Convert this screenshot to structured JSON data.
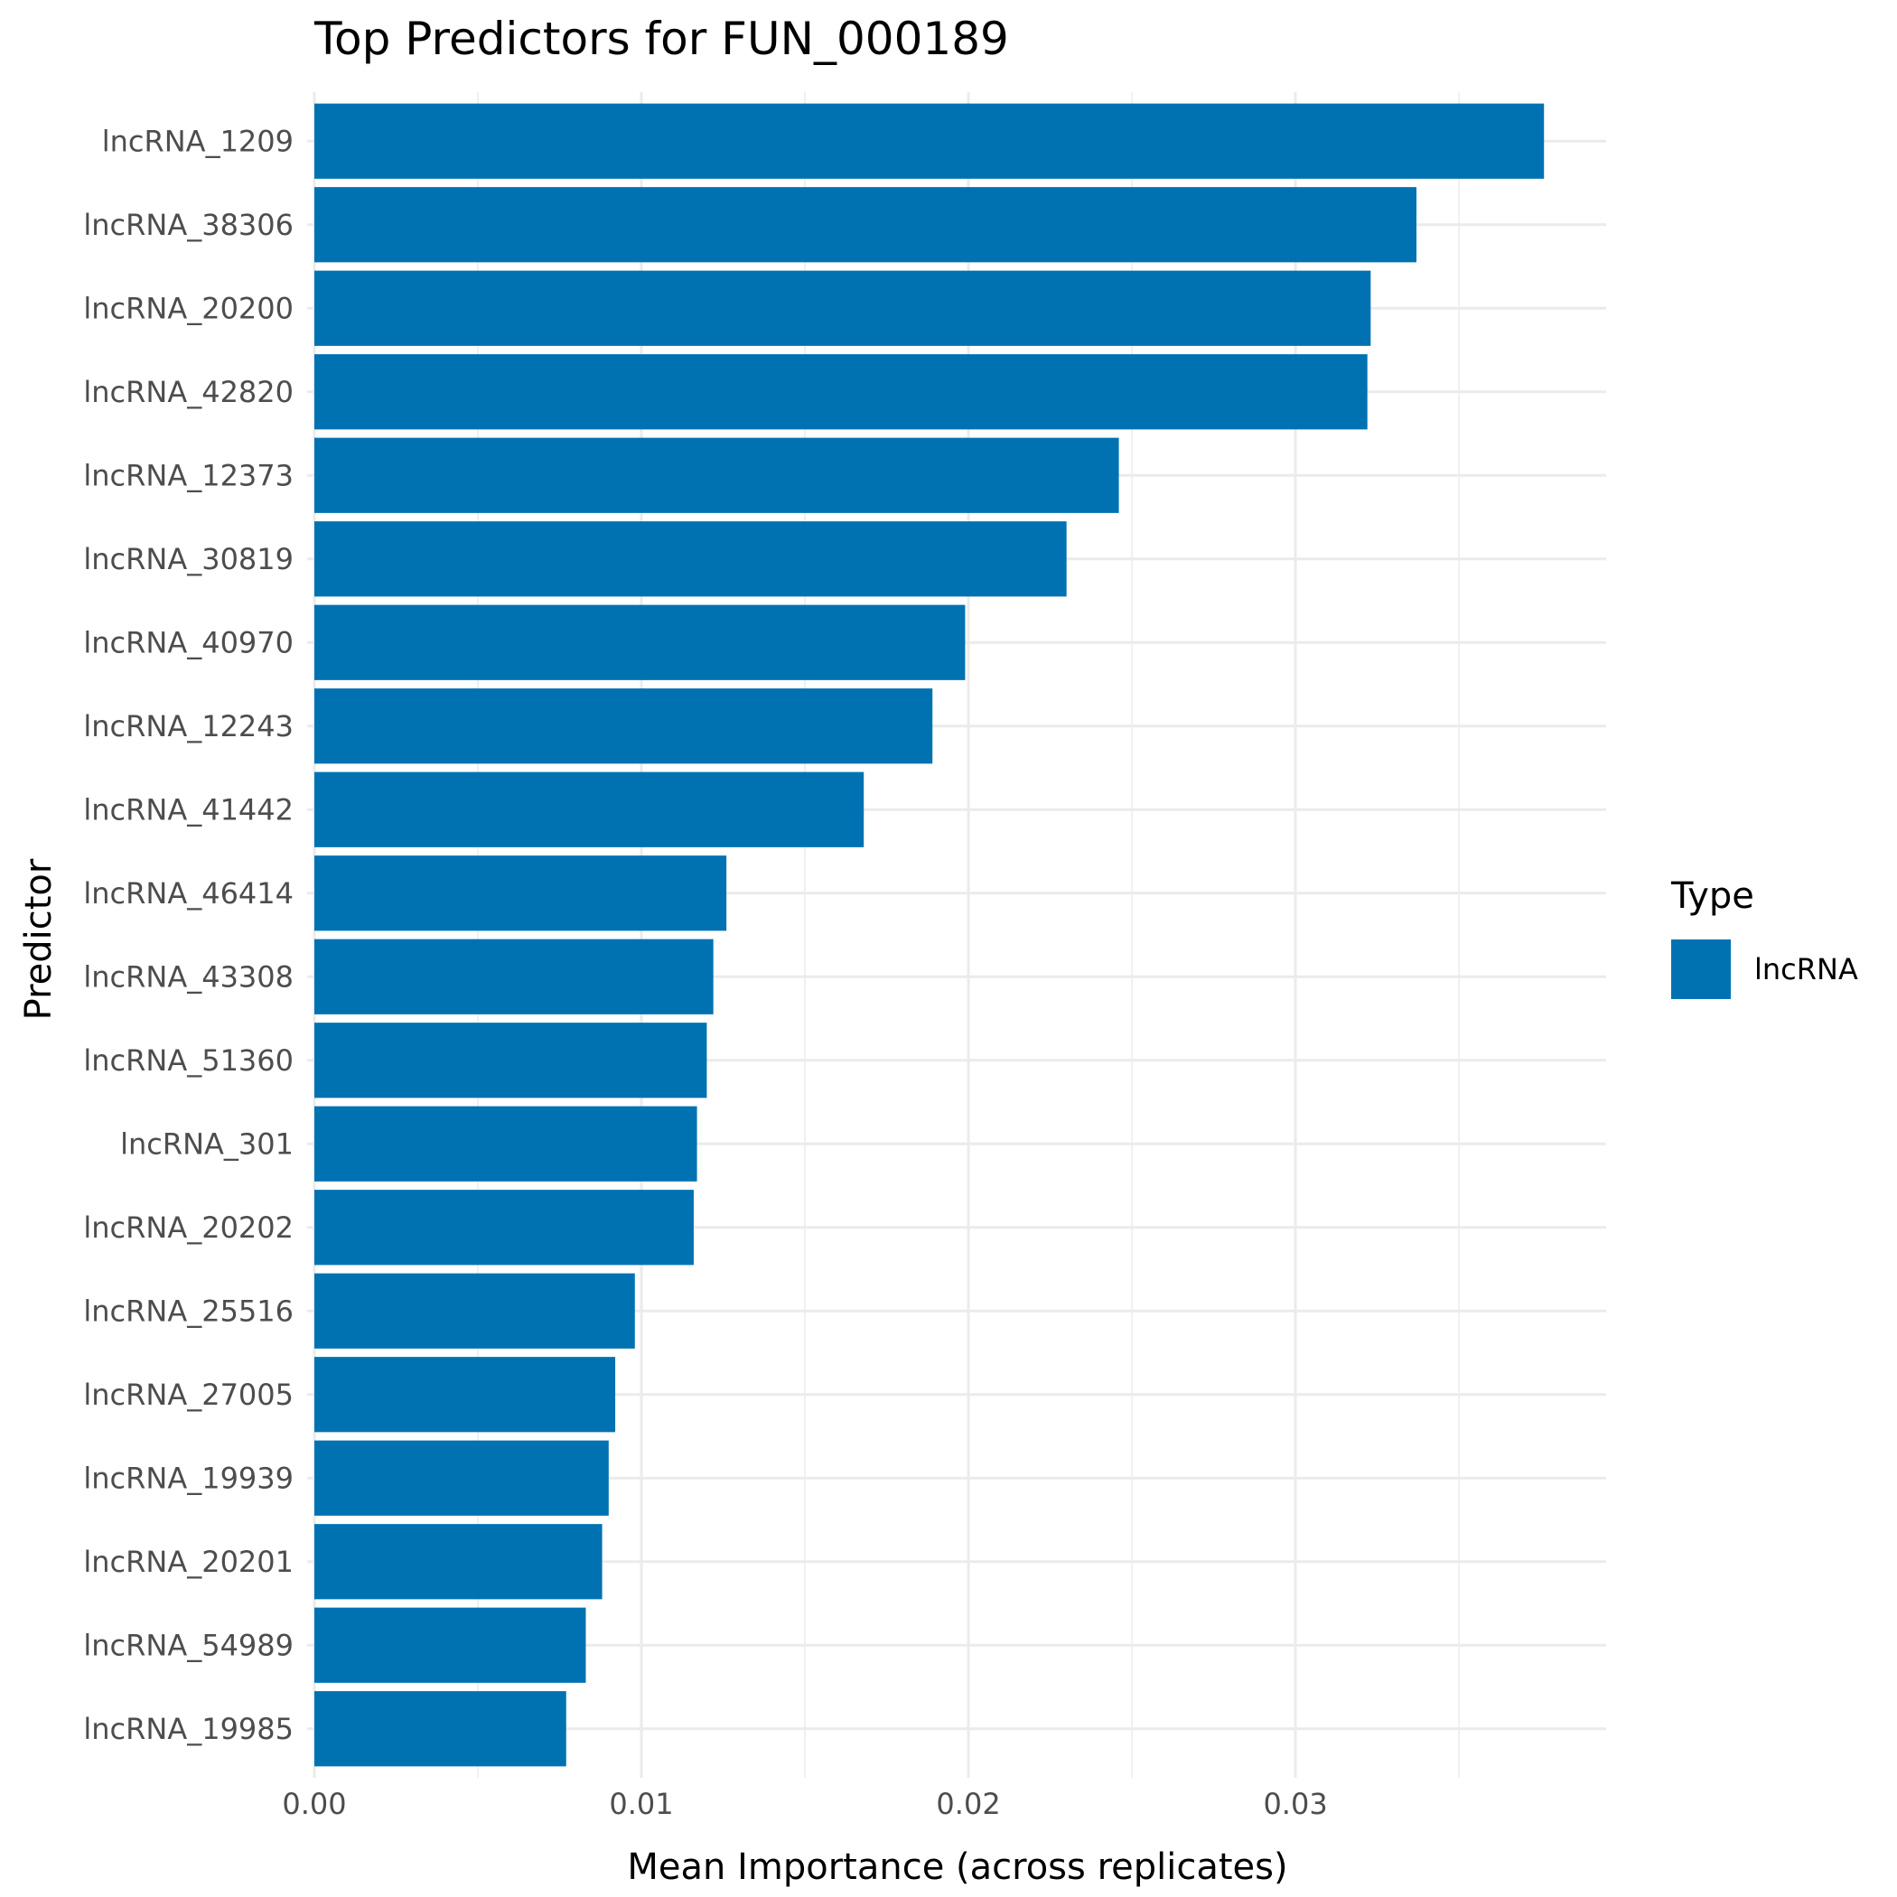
{
  "chart_data": {
    "type": "bar",
    "orientation": "horizontal",
    "title": "Top Predictors for FUN_000189",
    "xlabel": "Mean Importance (across replicates)",
    "ylabel": "Predictor",
    "xlim": [
      0,
      0.0395
    ],
    "xticks": [
      0.0,
      0.01,
      0.02,
      0.03
    ],
    "xtick_labels": [
      "0.00",
      "0.01",
      "0.02",
      "0.03"
    ],
    "grid": true,
    "legend": {
      "title": "Type",
      "placement": "right",
      "entries": [
        {
          "label": "lncRNA",
          "color": "#0072B2"
        }
      ]
    },
    "categories": [
      "lncRNA_1209",
      "lncRNA_38306",
      "lncRNA_20200",
      "lncRNA_42820",
      "lncRNA_12373",
      "lncRNA_30819",
      "lncRNA_40970",
      "lncRNA_12243",
      "lncRNA_41442",
      "lncRNA_46414",
      "lncRNA_43308",
      "lncRNA_51360",
      "lncRNA_301",
      "lncRNA_20202",
      "lncRNA_25516",
      "lncRNA_27005",
      "lncRNA_19939",
      "lncRNA_20201",
      "lncRNA_54989",
      "lncRNA_19985"
    ],
    "series": [
      {
        "name": "lncRNA",
        "color": "#0072B2",
        "values": [
          0.0376,
          0.0337,
          0.0323,
          0.0322,
          0.0246,
          0.023,
          0.0199,
          0.0189,
          0.0168,
          0.0126,
          0.0122,
          0.012,
          0.0117,
          0.0116,
          0.0098,
          0.0092,
          0.009,
          0.0088,
          0.0083,
          0.0077
        ]
      }
    ]
  }
}
